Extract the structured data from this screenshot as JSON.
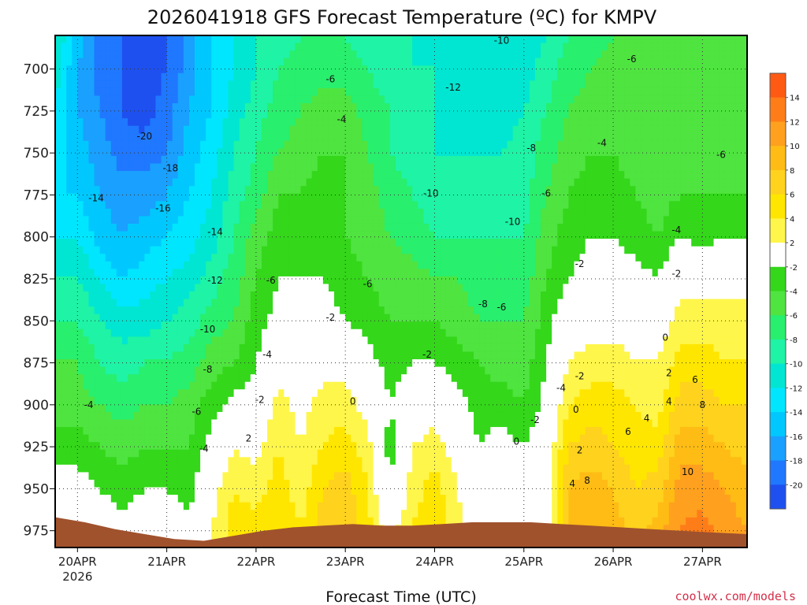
{
  "chart_data": {
    "type": "heatmap",
    "title": "2026041918 GFS Forecast Temperature (ºC) for KMPV",
    "xlabel": "Forecast Time (UTC)",
    "ylabel": "",
    "credit": "coolwx.com/models",
    "x_ticks": [
      {
        "label": "20APR",
        "sub": "2026",
        "t": 6
      },
      {
        "label": "21APR",
        "sub": "",
        "t": 30
      },
      {
        "label": "22APR",
        "sub": "",
        "t": 54
      },
      {
        "label": "23APR",
        "sub": "",
        "t": 78
      },
      {
        "label": "24APR",
        "sub": "",
        "t": 102
      },
      {
        "label": "25APR",
        "sub": "",
        "t": 126
      },
      {
        "label": "26APR",
        "sub": "",
        "t": 150
      },
      {
        "label": "27APR",
        "sub": "",
        "t": 174
      }
    ],
    "x_range_hours": [
      0,
      186
    ],
    "y_ticks": [
      700,
      725,
      750,
      775,
      800,
      825,
      850,
      875,
      900,
      925,
      950,
      975
    ],
    "y_range_hpa": [
      680,
      985
    ],
    "grid": true,
    "colorbar": {
      "labels": [
        "14",
        "12",
        "10",
        "8",
        "6",
        "4",
        "2",
        "-2",
        "-4",
        "-6",
        "-8",
        "-10",
        "-12",
        "-14",
        "-16",
        "-18",
        "-20"
      ],
      "colors": [
        "#ff5a14",
        "#ff7d19",
        "#ffa01e",
        "#ffbc14",
        "#ffd21e",
        "#ffe600",
        "#fff64b",
        "#ffffff",
        "#34d71a",
        "#4fe440",
        "#28ef6d",
        "#1ef3a6",
        "#00e6d2",
        "#00e6ff",
        "#00c8ff",
        "#1aa0ff",
        "#1f78ff",
        "#1e50f0"
      ]
    },
    "temperature_profile": {
      "levels_hpa": [
        680,
        700,
        725,
        750,
        775,
        800,
        825,
        850,
        875,
        900,
        925,
        950,
        975
      ],
      "columns": [
        {
          "t": 0,
          "values": [
            -10,
            -11,
            -12,
            -13,
            -14,
            -12,
            -10,
            -8,
            -6,
            -5,
            -3,
            -1,
            1
          ]
        },
        {
          "t": 6,
          "values": [
            -15,
            -16,
            -16,
            -15,
            -14,
            -12,
            -10,
            -8,
            -6,
            -5,
            -3,
            -1,
            1
          ]
        },
        {
          "t": 12,
          "values": [
            -19,
            -19,
            -18,
            -17,
            -16,
            -15,
            -12,
            -10,
            -8,
            -6,
            -4,
            -2,
            0
          ]
        },
        {
          "t": 18,
          "values": [
            -20,
            -20,
            -20,
            -19,
            -17,
            -16,
            -14,
            -11,
            -9,
            -7,
            -5,
            -3,
            -1
          ]
        },
        {
          "t": 24,
          "values": [
            -21,
            -21,
            -21,
            -19,
            -17,
            -15,
            -13,
            -11,
            -8,
            -6,
            -4,
            -2,
            0
          ]
        },
        {
          "t": 30,
          "values": [
            -20,
            -20,
            -19,
            -18,
            -16,
            -14,
            -12,
            -10,
            -8,
            -6,
            -4,
            -2,
            0
          ]
        },
        {
          "t": 36,
          "values": [
            -17,
            -17,
            -16,
            -15,
            -14,
            -13,
            -11,
            -9,
            -7,
            -5,
            -4,
            -3,
            -1
          ]
        },
        {
          "t": 42,
          "values": [
            -14,
            -14,
            -14,
            -13,
            -12,
            -11,
            -9,
            -7,
            -5,
            -3,
            -1,
            1,
            2
          ]
        },
        {
          "t": 48,
          "values": [
            -12,
            -12,
            -11,
            -10,
            -9,
            -8,
            -7,
            -6,
            -4,
            -1,
            2,
            4,
            5
          ]
        },
        {
          "t": 54,
          "values": [
            -10,
            -10,
            -9,
            -8,
            -7,
            -5,
            -4,
            -3,
            -2,
            -1,
            1,
            3,
            5
          ]
        },
        {
          "t": 60,
          "values": [
            -9,
            -8,
            -7,
            -6,
            -4,
            -3,
            -2,
            -1,
            1,
            3,
            4,
            5,
            6
          ]
        },
        {
          "t": 66,
          "values": [
            -8,
            -7,
            -6,
            -5,
            -4,
            -3,
            -2,
            -1,
            0,
            1,
            2,
            3,
            4
          ]
        },
        {
          "t": 72,
          "values": [
            -8,
            -7,
            -5,
            -4,
            -3,
            -3,
            -2,
            -1,
            1,
            3,
            4,
            6,
            7
          ]
        },
        {
          "t": 78,
          "values": [
            -8,
            -7,
            -5,
            -4,
            -4,
            -4,
            -3,
            -2,
            1,
            3,
            5,
            7,
            8
          ]
        },
        {
          "t": 84,
          "values": [
            -9,
            -8,
            -7,
            -6,
            -5,
            -5,
            -4,
            -3,
            -1,
            1,
            3,
            4,
            5
          ]
        },
        {
          "t": 90,
          "values": [
            -10,
            -9,
            -8,
            -8,
            -7,
            -6,
            -5,
            -4,
            -3,
            -2,
            -3,
            -2,
            1
          ]
        },
        {
          "t": 96,
          "values": [
            -10,
            -10,
            -9,
            -9,
            -8,
            -7,
            -5,
            -4,
            -2,
            0,
            2,
            3,
            4
          ]
        },
        {
          "t": 102,
          "values": [
            -11,
            -10,
            -10,
            -10,
            -9,
            -8,
            -6,
            -4,
            -2,
            1,
            3,
            5,
            6
          ]
        },
        {
          "t": 108,
          "values": [
            -12,
            -11,
            -11,
            -10,
            -9,
            -8,
            -6,
            -5,
            -3,
            -1,
            1,
            2,
            3
          ]
        },
        {
          "t": 114,
          "values": [
            -12,
            -12,
            -11,
            -10,
            -9,
            -8,
            -7,
            -6,
            -4,
            -3,
            -2,
            -1,
            1
          ]
        },
        {
          "t": 120,
          "values": [
            -12,
            -12,
            -11,
            -10,
            -9,
            -8,
            -7,
            -6,
            -5,
            -3,
            -1,
            1,
            2
          ]
        },
        {
          "t": 126,
          "values": [
            -11,
            -11,
            -10,
            -9,
            -9,
            -8,
            -7,
            -6,
            -5,
            -4,
            -2,
            0,
            1
          ]
        },
        {
          "t": 132,
          "values": [
            -10,
            -9,
            -8,
            -7,
            -6,
            -5,
            -4,
            -3,
            -2,
            -1,
            0,
            1,
            1
          ]
        },
        {
          "t": 138,
          "values": [
            -8,
            -7,
            -6,
            -5,
            -4,
            -3,
            -2,
            0,
            2,
            4,
            6,
            8,
            9
          ]
        },
        {
          "t": 144,
          "values": [
            -7,
            -6,
            -5,
            -4,
            -3,
            -2,
            -1,
            1,
            3,
            5,
            7,
            9,
            10
          ]
        },
        {
          "t": 150,
          "values": [
            -6,
            -5,
            -5,
            -4,
            -3,
            -2,
            -1,
            1,
            3,
            5,
            6,
            8,
            9
          ]
        },
        {
          "t": 156,
          "values": [
            -6,
            -6,
            -5,
            -5,
            -4,
            -3,
            -1,
            1,
            2,
            4,
            5,
            6,
            7
          ]
        },
        {
          "t": 162,
          "values": [
            -6,
            -6,
            -6,
            -5,
            -5,
            -4,
            -2,
            0,
            2,
            3,
            5,
            7,
            9
          ]
        },
        {
          "t": 168,
          "values": [
            -6,
            -6,
            -6,
            -5,
            -4,
            -2,
            1,
            3,
            5,
            7,
            9,
            11,
            12
          ]
        },
        {
          "t": 174,
          "values": [
            -6,
            -6,
            -6,
            -5,
            -4,
            -3,
            1,
            3,
            5,
            7,
            9,
            11,
            13
          ]
        },
        {
          "t": 180,
          "values": [
            -6,
            -6,
            -5,
            -5,
            -4,
            -2,
            1,
            3,
            4,
            6,
            8,
            10,
            11
          ]
        },
        {
          "t": 186,
          "values": [
            -6,
            -6,
            -5,
            -5,
            -4,
            -2,
            1,
            3,
            4,
            6,
            7,
            9,
            10
          ]
        }
      ]
    },
    "terrain_surface_hpa": [
      {
        "t": 0,
        "p": 967
      },
      {
        "t": 8,
        "p": 970
      },
      {
        "t": 16,
        "p": 974
      },
      {
        "t": 24,
        "p": 977
      },
      {
        "t": 32,
        "p": 980
      },
      {
        "t": 40,
        "p": 981
      },
      {
        "t": 48,
        "p": 978
      },
      {
        "t": 56,
        "p": 975
      },
      {
        "t": 64,
        "p": 973
      },
      {
        "t": 72,
        "p": 972
      },
      {
        "t": 80,
        "p": 971
      },
      {
        "t": 88,
        "p": 972
      },
      {
        "t": 96,
        "p": 972
      },
      {
        "t": 104,
        "p": 971
      },
      {
        "t": 112,
        "p": 970
      },
      {
        "t": 120,
        "p": 970
      },
      {
        "t": 128,
        "p": 970
      },
      {
        "t": 136,
        "p": 971
      },
      {
        "t": 144,
        "p": 972
      },
      {
        "t": 152,
        "p": 973
      },
      {
        "t": 160,
        "p": 974
      },
      {
        "t": 168,
        "p": 975
      },
      {
        "t": 176,
        "p": 976
      },
      {
        "t": 186,
        "p": 977
      }
    ],
    "contour_labels": [
      {
        "text": "-20",
        "t": 24,
        "p": 740
      },
      {
        "text": "-18",
        "t": 31,
        "p": 759
      },
      {
        "text": "-16",
        "t": 29,
        "p": 783
      },
      {
        "text": "-14",
        "t": 11,
        "p": 777
      },
      {
        "text": "-14",
        "t": 43,
        "p": 797
      },
      {
        "text": "-12",
        "t": 43,
        "p": 826
      },
      {
        "text": "-10",
        "t": 41,
        "p": 855
      },
      {
        "text": "-8",
        "t": 41,
        "p": 879
      },
      {
        "text": "-6",
        "t": 38,
        "p": 904
      },
      {
        "text": "-4",
        "t": 40,
        "p": 926
      },
      {
        "text": "-4",
        "t": 9,
        "p": 900
      },
      {
        "text": "-6",
        "t": 58,
        "p": 826
      },
      {
        "text": "-4",
        "t": 57,
        "p": 870
      },
      {
        "text": "-2",
        "t": 55,
        "p": 897
      },
      {
        "text": "2",
        "t": 52,
        "p": 920
      },
      {
        "text": "-2",
        "t": 74,
        "p": 848
      },
      {
        "text": "0",
        "t": 80,
        "p": 898
      },
      {
        "text": "-4",
        "t": 77,
        "p": 730
      },
      {
        "text": "-6",
        "t": 74,
        "p": 706
      },
      {
        "text": "-6",
        "t": 84,
        "p": 828
      },
      {
        "text": "-10",
        "t": 101,
        "p": 774
      },
      {
        "text": "-12",
        "t": 107,
        "p": 711
      },
      {
        "text": "-2",
        "t": 100,
        "p": 870
      },
      {
        "text": "-10",
        "t": 123,
        "p": 791
      },
      {
        "text": "-10",
        "t": 120,
        "p": 683
      },
      {
        "text": "-8",
        "t": 115,
        "p": 840
      },
      {
        "text": "-6",
        "t": 120,
        "p": 842
      },
      {
        "text": "-8",
        "t": 128,
        "p": 747
      },
      {
        "text": "-6",
        "t": 132,
        "p": 774
      },
      {
        "text": "-2",
        "t": 129,
        "p": 909
      },
      {
        "text": "0",
        "t": 124,
        "p": 922
      },
      {
        "text": "-4",
        "t": 136,
        "p": 890
      },
      {
        "text": "-2",
        "t": 141,
        "p": 816
      },
      {
        "text": "-2",
        "t": 141,
        "p": 883
      },
      {
        "text": "0",
        "t": 140,
        "p": 903
      },
      {
        "text": "2",
        "t": 141,
        "p": 927
      },
      {
        "text": "4",
        "t": 139,
        "p": 947
      },
      {
        "text": "8",
        "t": 143,
        "p": 945
      },
      {
        "text": "-4",
        "t": 147,
        "p": 744
      },
      {
        "text": "-6",
        "t": 155,
        "p": 694
      },
      {
        "text": "-6",
        "t": 179,
        "p": 751
      },
      {
        "text": "-4",
        "t": 167,
        "p": 796
      },
      {
        "text": "-2",
        "t": 167,
        "p": 822
      },
      {
        "text": "0",
        "t": 164,
        "p": 860
      },
      {
        "text": "2",
        "t": 165,
        "p": 881
      },
      {
        "text": "6",
        "t": 172,
        "p": 885
      },
      {
        "text": "4",
        "t": 165,
        "p": 898
      },
      {
        "text": "8",
        "t": 174,
        "p": 900
      },
      {
        "text": "4",
        "t": 159,
        "p": 908
      },
      {
        "text": "6",
        "t": 154,
        "p": 916
      },
      {
        "text": "10",
        "t": 170,
        "p": 940
      }
    ]
  }
}
